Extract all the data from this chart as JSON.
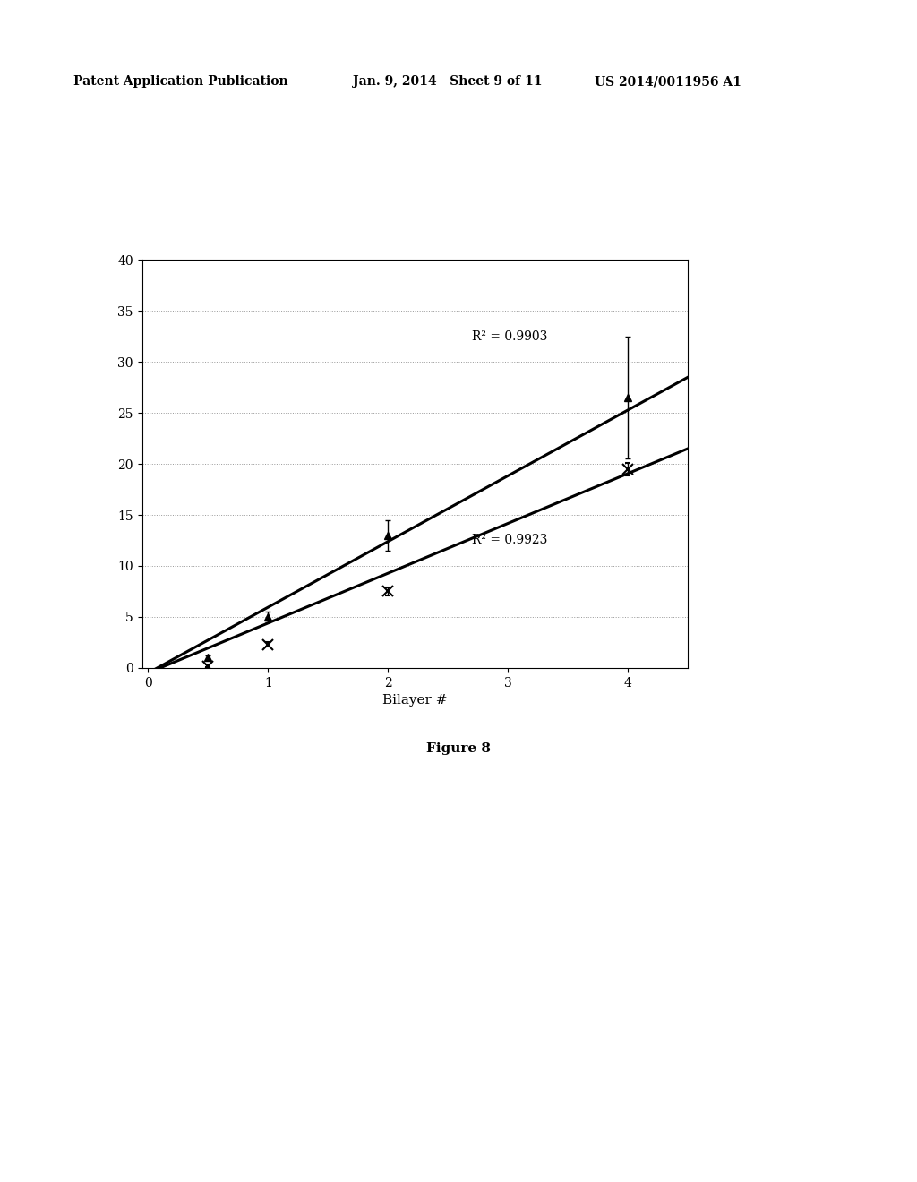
{
  "series1": {
    "x": [
      0.5,
      1.0,
      2.0,
      4.0
    ],
    "y": [
      1.0,
      5.0,
      13.0,
      26.5
    ],
    "yerr": [
      0.2,
      0.5,
      1.5,
      6.0
    ],
    "marker": "^",
    "r2": "R² = 0.9903",
    "r2_x": 2.7,
    "r2_y": 32.5,
    "line_x": [
      0.0,
      4.5
    ],
    "line_y": [
      -0.5,
      28.5
    ]
  },
  "series2": {
    "x": [
      0.5,
      1.0,
      2.0,
      4.0
    ],
    "y": [
      0.2,
      2.3,
      7.5,
      19.5
    ],
    "yerr": [
      0.1,
      0.2,
      0.4,
      0.6
    ],
    "marker": "x",
    "r2": "R² = 0.9923",
    "r2_x": 2.7,
    "r2_y": 12.5,
    "line_x": [
      0.0,
      4.5
    ],
    "line_y": [
      -0.5,
      21.5
    ]
  },
  "xlabel": "Bilayer #",
  "xlim": [
    -0.05,
    4.5
  ],
  "ylim": [
    0,
    40
  ],
  "yticks": [
    0,
    5,
    10,
    15,
    20,
    25,
    30,
    35,
    40
  ],
  "xticks": [
    0,
    1,
    2,
    3,
    4
  ],
  "figure_caption": "Figure 8",
  "header_left": "Patent Application Publication",
  "header_mid": "Jan. 9, 2014   Sheet 9 of 11",
  "header_right": "US 2014/0011956 A1",
  "background_color": "#ffffff",
  "grid_color": "#999999"
}
